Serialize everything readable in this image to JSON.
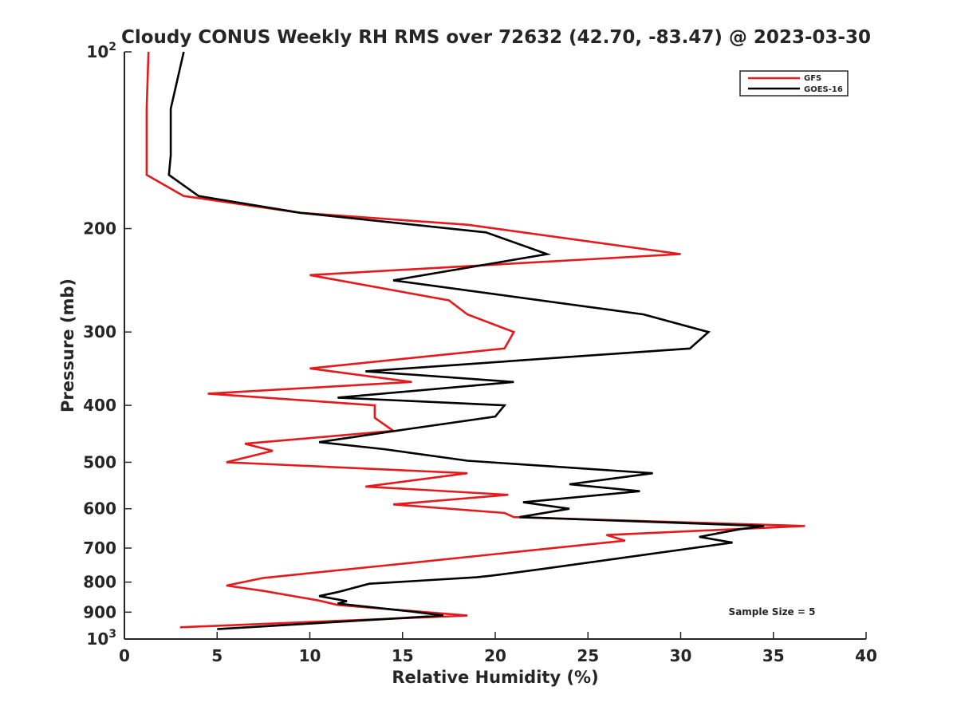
{
  "chart_data": {
    "type": "line",
    "title": "Cloudy CONUS Weekly RH RMS over 72632 (42.70, -83.47) @ 2023-03-30",
    "xlabel": "Relative Humidity (%)",
    "ylabel": "Pressure (mb)",
    "xlim": [
      0,
      40
    ],
    "ylim": [
      100,
      1000
    ],
    "y_scale": "log",
    "y_reversed": true,
    "x_ticks": [
      "0",
      "5",
      "10",
      "15",
      "20",
      "25",
      "30",
      "35",
      "40"
    ],
    "y_ticks": [
      {
        "value": 100,
        "base": "10",
        "exp": "2"
      },
      {
        "value": 200,
        "label": "200"
      },
      {
        "value": 300,
        "label": "300"
      },
      {
        "value": 400,
        "label": "400"
      },
      {
        "value": 500,
        "label": "500"
      },
      {
        "value": 600,
        "label": "600"
      },
      {
        "value": 700,
        "label": "700"
      },
      {
        "value": 800,
        "label": "800"
      },
      {
        "value": 900,
        "label": "900"
      },
      {
        "value": 1000,
        "base": "10",
        "exp": "3"
      }
    ],
    "legend_position": "top-right",
    "annotation": "Sample Size = 5",
    "series": [
      {
        "name": "GFS",
        "color": "#e41a1c",
        "points": [
          [
            1.3,
            100
          ],
          [
            1.2,
            125
          ],
          [
            1.2,
            150
          ],
          [
            1.2,
            162
          ],
          [
            3.2,
            176
          ],
          [
            9.5,
            188
          ],
          [
            18.5,
            197
          ],
          [
            30.0,
            221
          ],
          [
            10.0,
            240
          ],
          [
            17.5,
            265
          ],
          [
            18.5,
            280
          ],
          [
            21.0,
            300
          ],
          [
            20.5,
            320
          ],
          [
            10.0,
            346
          ],
          [
            15.5,
            365
          ],
          [
            4.5,
            382
          ],
          [
            13.5,
            400
          ],
          [
            13.5,
            420
          ],
          [
            14.5,
            442
          ],
          [
            6.5,
            465
          ],
          [
            8.0,
            478
          ],
          [
            5.5,
            500
          ],
          [
            18.5,
            522
          ],
          [
            13.0,
            550
          ],
          [
            20.7,
            568
          ],
          [
            14.5,
            590
          ],
          [
            20.5,
            610
          ],
          [
            21.0,
            620
          ],
          [
            36.7,
            642
          ],
          [
            26.0,
            665
          ],
          [
            27.0,
            680
          ],
          [
            14.0,
            750
          ],
          [
            7.5,
            787
          ],
          [
            5.5,
            811
          ],
          [
            7.5,
            828
          ],
          [
            10.5,
            860
          ],
          [
            11.5,
            875
          ],
          [
            18.5,
            912
          ],
          [
            3.0,
            955
          ]
        ]
      },
      {
        "name": "GOES-16",
        "color": "#000000",
        "points": [
          [
            3.2,
            100
          ],
          [
            2.5,
            125
          ],
          [
            2.5,
            150
          ],
          [
            2.4,
            162
          ],
          [
            4.0,
            176
          ],
          [
            9.5,
            188
          ],
          [
            19.5,
            203
          ],
          [
            22.8,
            221
          ],
          [
            14.5,
            245
          ],
          [
            28.0,
            280
          ],
          [
            31.5,
            300
          ],
          [
            30.5,
            320
          ],
          [
            13.0,
            350
          ],
          [
            21.0,
            365
          ],
          [
            11.5,
            388
          ],
          [
            20.5,
            400
          ],
          [
            20.0,
            418
          ],
          [
            15.5,
            438
          ],
          [
            10.5,
            462
          ],
          [
            14.0,
            475
          ],
          [
            18.5,
            497
          ],
          [
            28.5,
            522
          ],
          [
            24.0,
            545
          ],
          [
            27.8,
            560
          ],
          [
            21.5,
            585
          ],
          [
            24.0,
            600
          ],
          [
            21.3,
            620
          ],
          [
            34.5,
            642
          ],
          [
            33.2,
            650
          ],
          [
            31.0,
            670
          ],
          [
            32.8,
            685
          ],
          [
            22.5,
            760
          ],
          [
            19.8,
            780
          ],
          [
            19.0,
            785
          ],
          [
            13.2,
            805
          ],
          [
            11.5,
            832
          ],
          [
            10.5,
            845
          ],
          [
            12.0,
            862
          ],
          [
            11.5,
            870
          ],
          [
            15.5,
            898
          ],
          [
            17.2,
            912
          ],
          [
            5.0,
            962
          ]
        ]
      }
    ]
  }
}
